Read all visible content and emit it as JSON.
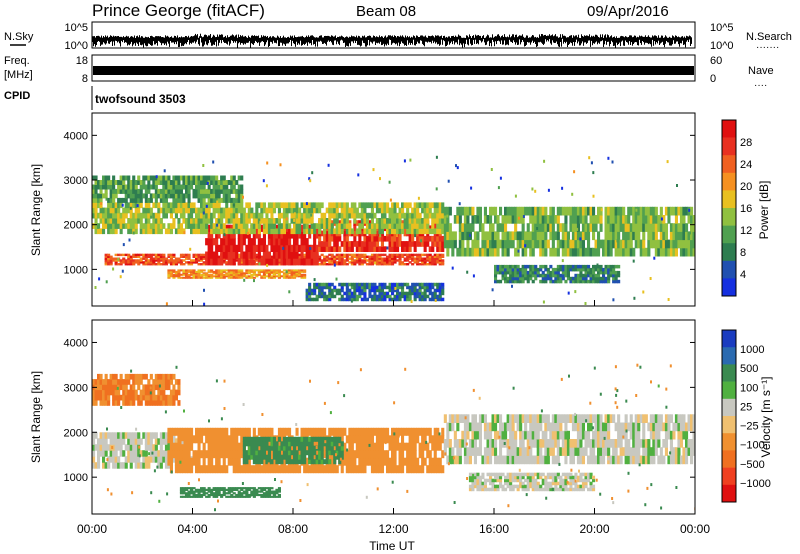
{
  "header": {
    "station": "Prince George (fitACF)",
    "beam": "Beam 08",
    "date": "09/Apr/2016"
  },
  "strip_labels": {
    "nsky": "N.Sky",
    "nsearch": "N.Search",
    "nsearch_dots": "·······",
    "freq_line1": "Freq.",
    "freq_line2": "[MHz]",
    "nave": "Nave",
    "nave_dots": "····",
    "cpid": "CPID",
    "cpid_value": "twofsound 3503"
  },
  "chart_data": [
    {
      "type": "line",
      "name": "noise-strip",
      "left_ticks": [
        "10^5",
        "10^0"
      ],
      "right_ticks": [
        "10^5",
        "10^0"
      ]
    },
    {
      "type": "line",
      "name": "freq-strip",
      "left_ticks": [
        "18",
        "8"
      ],
      "right_ticks": [
        "60",
        "0"
      ]
    },
    {
      "type": "heatmap",
      "name": "power",
      "ylabel": "Slant Range [km]",
      "ylim": [
        180,
        4500
      ],
      "y_ticks": [
        1000,
        2000,
        3000,
        4000
      ],
      "xlim": [
        0,
        24
      ],
      "colorbar": {
        "label": "Power [dB]",
        "ticks": [
          "4",
          "8",
          "12",
          "16",
          "20",
          "24",
          "28"
        ],
        "colors": [
          "#1530e0",
          "#2050b0",
          "#2e7d50",
          "#50a050",
          "#90c040",
          "#e8c020",
          "#f59020",
          "#f06020",
          "#e83020",
          "#e01010"
        ]
      },
      "regions": [
        {
          "t0": 0.5,
          "t1": 14.0,
          "r0": 1100,
          "r1": 1350,
          "value": 24
        },
        {
          "t0": 3.0,
          "t1": 8.5,
          "r0": 800,
          "r1": 1000,
          "value": 20
        },
        {
          "t0": 4.5,
          "t1": 9.0,
          "r0": 1100,
          "r1": 2000,
          "value": 28
        },
        {
          "t0": 9.0,
          "t1": 14.0,
          "r0": 1400,
          "r1": 2100,
          "value": 26
        },
        {
          "t0": 0.0,
          "t1": 14.0,
          "r0": 1800,
          "r1": 2500,
          "value": 14
        },
        {
          "t0": 0.0,
          "t1": 6.0,
          "r0": 2500,
          "r1": 3100,
          "value": 10
        },
        {
          "t0": 14.0,
          "t1": 24.0,
          "r0": 1300,
          "r1": 2400,
          "value": 12
        },
        {
          "t0": 16.0,
          "t1": 21.0,
          "r0": 700,
          "r1": 1100,
          "value": 8
        },
        {
          "t0": 8.5,
          "t1": 14.0,
          "r0": 300,
          "r1": 700,
          "value": 6
        }
      ]
    },
    {
      "type": "heatmap",
      "name": "velocity",
      "ylabel": "Slant Range [km]",
      "ylim": [
        180,
        4500
      ],
      "y_ticks": [
        1000,
        2000,
        3000,
        4000
      ],
      "xlim": [
        0,
        24
      ],
      "xlabel": "Time UT",
      "x_ticks": [
        "00:00",
        "04:00",
        "08:00",
        "12:00",
        "16:00",
        "20:00",
        "00:00"
      ],
      "colorbar": {
        "label": "Velocity [m s⁻¹]",
        "ticks": [
          "1000",
          "500",
          "100",
          "25",
          "−25",
          "−100",
          "−500",
          "−1000"
        ],
        "colors": [
          "#1a3cc0",
          "#2a6ab0",
          "#3a8a50",
          "#50b040",
          "#c8c8c0",
          "#f0c070",
          "#f09030",
          "#f07020",
          "#f04020",
          "#e01010"
        ]
      },
      "regions": [
        {
          "t0": 0.0,
          "t1": 4.0,
          "r0": 1200,
          "r1": 2000,
          "value": 0
        },
        {
          "t0": 3.0,
          "t1": 14.0,
          "r0": 1100,
          "r1": 2100,
          "value": -200
        },
        {
          "t0": 6.0,
          "t1": 10.0,
          "r0": 1300,
          "r1": 1900,
          "value": 100
        },
        {
          "t0": 3.5,
          "t1": 7.5,
          "r0": 550,
          "r1": 780,
          "value": 150
        },
        {
          "t0": 0.0,
          "t1": 3.5,
          "r0": 2600,
          "r1": 3300,
          "value": -300
        },
        {
          "t0": 14.0,
          "t1": 24.0,
          "r0": 1300,
          "r1": 2400,
          "value": 0
        },
        {
          "t0": 15.0,
          "t1": 20.0,
          "r0": 700,
          "r1": 1100,
          "value": 0
        }
      ]
    }
  ]
}
